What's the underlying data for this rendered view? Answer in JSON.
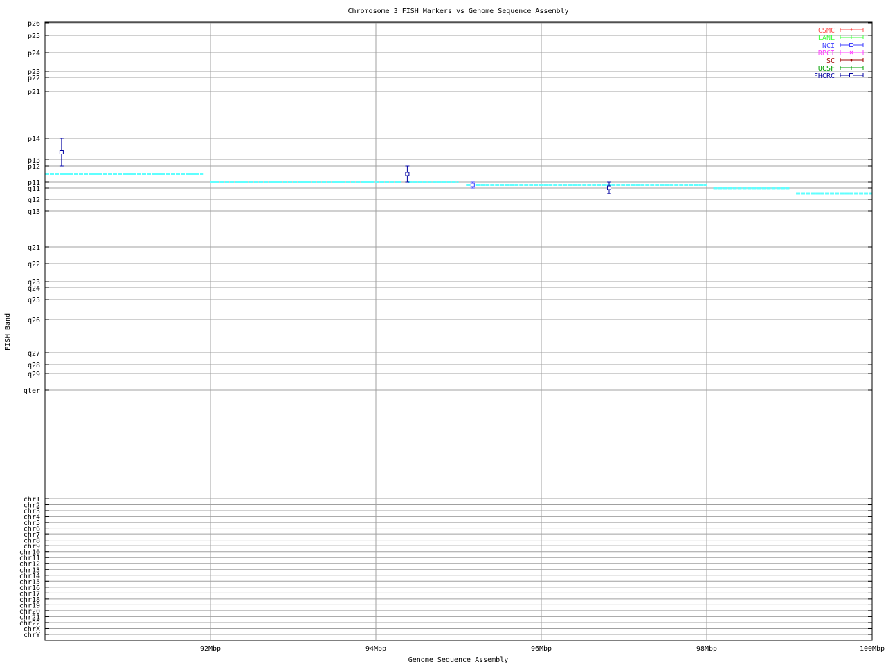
{
  "chart_data": {
    "type": "scatter",
    "title": "Chromosome 3 FISH Markers vs Genome Sequence Assembly",
    "xlabel": "Genome Sequence Assembly",
    "ylabel": "FISH Band",
    "xlim": [
      90,
      100
    ],
    "x_ticks": [
      {
        "value": 92,
        "label": "92Mbp"
      },
      {
        "value": 94,
        "label": "94Mbp"
      },
      {
        "value": 96,
        "label": "96Mbp"
      },
      {
        "value": 98,
        "label": "98Mbp"
      },
      {
        "value": 100,
        "label": "100Mbp"
      }
    ],
    "y_ticks": [
      "p26",
      "p25",
      "p24",
      "p23",
      "p22",
      "p21",
      "p14",
      "p13",
      "p12",
      "p11",
      "q11",
      "q12",
      "q13",
      "q21",
      "q22",
      "q23",
      "q24",
      "q25",
      "q26",
      "q27",
      "q28",
      "q29",
      "qter",
      "chr1",
      "chr2",
      "chr3",
      "chr4",
      "chr5",
      "chr6",
      "chr7",
      "chr8",
      "chr9",
      "chr10",
      "chr11",
      "chr12",
      "chr13",
      "chr14",
      "chr15",
      "chr16",
      "chr17",
      "chr18",
      "chr19",
      "chr20",
      "chr21",
      "chr22",
      "chrX",
      "chrY"
    ],
    "grid": true,
    "legend_placement": "top-right",
    "legend": [
      {
        "name": "CSMC",
        "color": "#ff5050",
        "marker": "diamond"
      },
      {
        "name": "LANL",
        "color": "#40ff40",
        "marker": "plus"
      },
      {
        "name": "NCI",
        "color": "#4040ff",
        "marker": "box"
      },
      {
        "name": "RPCI",
        "color": "#ff40ff",
        "marker": "cross"
      },
      {
        "name": "SC",
        "color": "#a00000",
        "marker": "diamond"
      },
      {
        "name": "UCSF",
        "color": "#00a000",
        "marker": "plus"
      },
      {
        "name": "FHCRC",
        "color": "#0000a0",
        "marker": "box"
      }
    ],
    "points": [
      {
        "series": "FHCRC",
        "x": 90.2,
        "low": "p12",
        "high": "p14"
      },
      {
        "series": "FHCRC",
        "x": 94.38,
        "low": "p11",
        "high": "p12"
      },
      {
        "series": "NCI",
        "x": 95.17,
        "low": "q11",
        "high": "p11"
      },
      {
        "series": "FHCRC",
        "x": 96.82,
        "low": [
          "q11",
          "q12"
        ],
        "high": "p11"
      }
    ],
    "assembly_segments": {
      "color": "#60ffff",
      "items": [
        {
          "x_start": 90.0,
          "x_end": 91.91,
          "y": [
            "p12",
            "p11"
          ]
        },
        {
          "x_start": 92.0,
          "x_end": 94.31,
          "y": "p11"
        },
        {
          "x_start": 94.39,
          "x_end": 95.0,
          "y": "p11"
        },
        {
          "x_start": 95.09,
          "x_end": 98.0,
          "y": [
            "p11",
            "q11"
          ]
        },
        {
          "x_start": 98.08,
          "x_end": 99.0,
          "y": "q11"
        },
        {
          "x_start": 99.08,
          "x_end": 100.0,
          "y": [
            "q11",
            "q12"
          ]
        }
      ]
    }
  }
}
